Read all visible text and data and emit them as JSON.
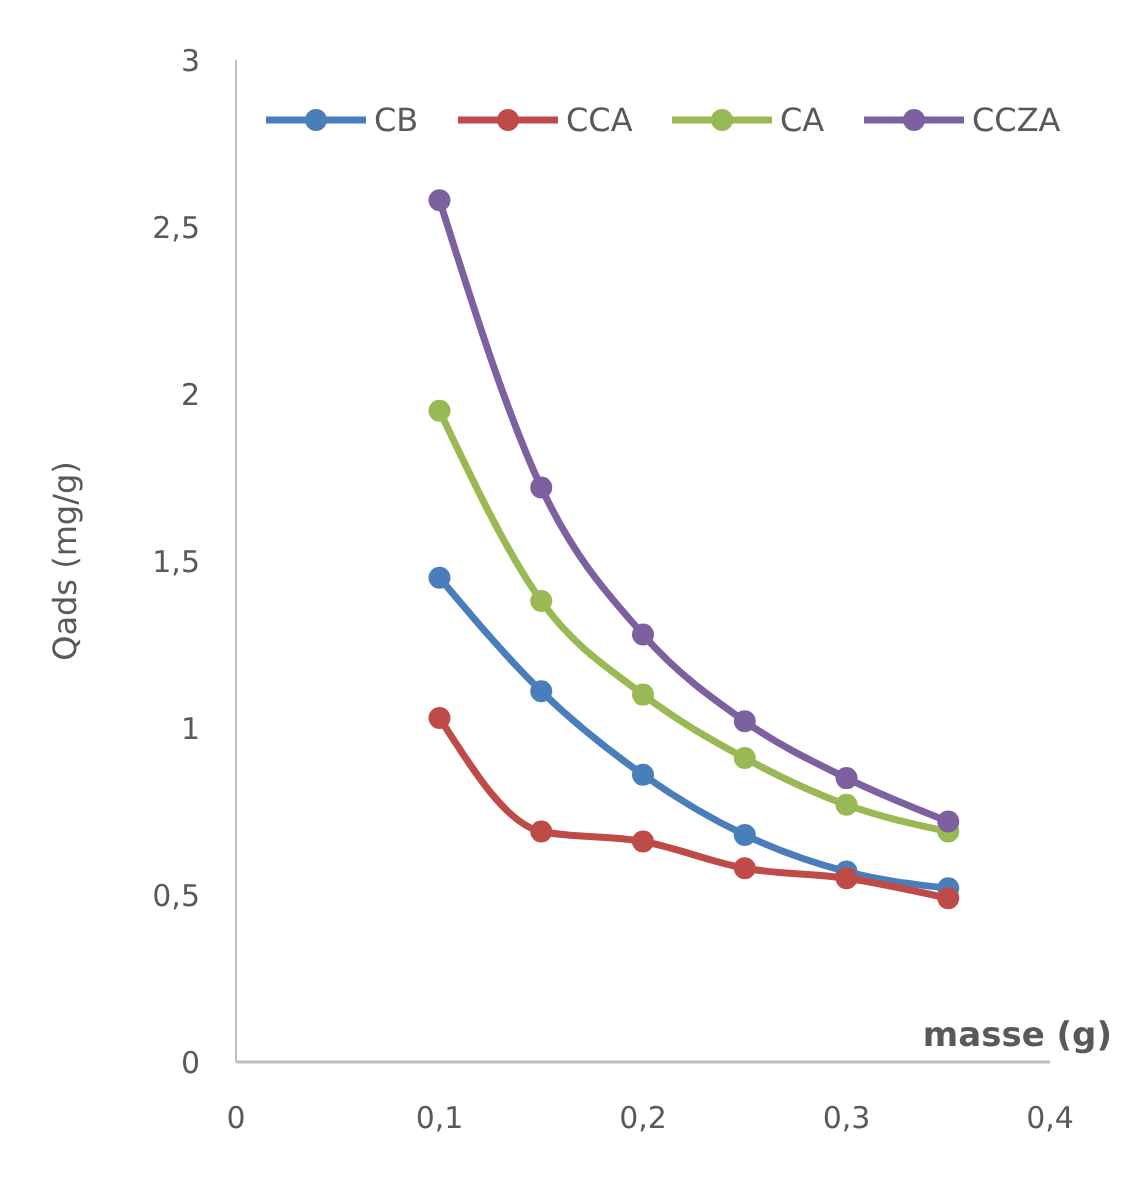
{
  "chart_data": {
    "type": "line",
    "xlabel": "masse (g)",
    "ylabel": "Qads (mg/g)",
    "x": [
      0.1,
      0.15,
      0.2,
      0.25,
      0.3,
      0.35
    ],
    "series": [
      {
        "name": "CB",
        "color": "#4a7ebb",
        "values": [
          1.45,
          1.11,
          0.86,
          0.68,
          0.57,
          0.52
        ]
      },
      {
        "name": "CCA",
        "color": "#be4b48",
        "values": [
          1.03,
          0.69,
          0.66,
          0.58,
          0.55,
          0.49
        ]
      },
      {
        "name": "CA",
        "color": "#98b954",
        "values": [
          1.95,
          1.38,
          1.1,
          0.91,
          0.77,
          0.69
        ]
      },
      {
        "name": "CCZA",
        "color": "#7d60a0",
        "values": [
          2.58,
          1.72,
          1.28,
          1.02,
          0.85,
          0.72
        ]
      }
    ],
    "xlim": [
      0,
      0.4
    ],
    "xticks": [
      0,
      {
        "value": 0.1,
        "label": "0,1"
      },
      {
        "value": 0.2,
        "label": "0,2"
      },
      {
        "value": 0.3,
        "label": "0,3"
      },
      {
        "value": 0.4,
        "label": "0,4"
      }
    ],
    "ylim": [
      0,
      3
    ],
    "yticks": [
      0,
      {
        "value": 0.5,
        "label": "0,5"
      },
      1,
      {
        "value": 1.5,
        "label": "1,5"
      },
      2,
      {
        "value": 2.5,
        "label": "2,5"
      },
      3
    ],
    "grid": false,
    "legend": "top",
    "marker": "circle",
    "line_style": "solid"
  }
}
